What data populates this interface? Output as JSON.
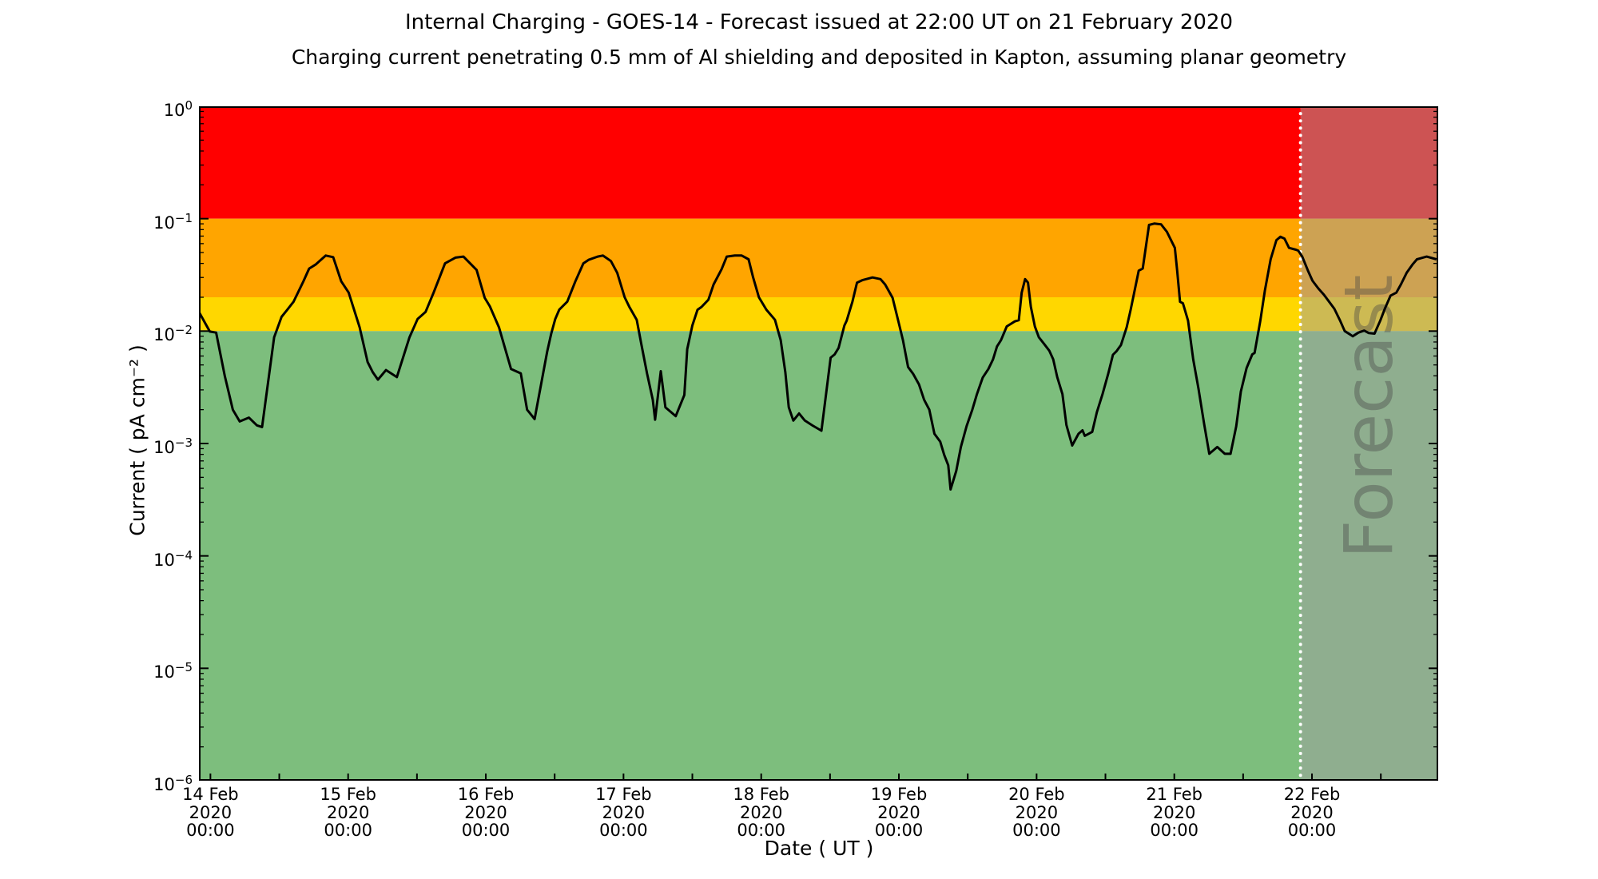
{
  "chart_data": {
    "type": "line",
    "title": "Internal Charging - GOES-14 - Forecast issued at 22:00 UT on 21 February 2020",
    "subtitle": "Charging current penetrating 0.5 mm of Al shielding and deposited in Kapton, assuming planar geometry",
    "xlabel": "Date ( UT )",
    "ylabel": "Current ( pA cm⁻² )",
    "grid": false,
    "legend": "none",
    "x_axis": {
      "range_hours": [
        0,
        216
      ],
      "tick_interval_hours": 12,
      "tick_labels": [
        {
          "hour": 2,
          "lines": [
            "14 Feb",
            "2020",
            "00:00"
          ]
        },
        {
          "hour": 26,
          "lines": [
            "15 Feb",
            "2020",
            "00:00"
          ]
        },
        {
          "hour": 50,
          "lines": [
            "16 Feb",
            "2020",
            "00:00"
          ]
        },
        {
          "hour": 74,
          "lines": [
            "17 Feb",
            "2020",
            "00:00"
          ]
        },
        {
          "hour": 98,
          "lines": [
            "18 Feb",
            "2020",
            "00:00"
          ]
        },
        {
          "hour": 122,
          "lines": [
            "19 Feb",
            "2020",
            "00:00"
          ]
        },
        {
          "hour": 146,
          "lines": [
            "20 Feb",
            "2020",
            "00:00"
          ]
        },
        {
          "hour": 170,
          "lines": [
            "21 Feb",
            "2020",
            "00:00"
          ]
        },
        {
          "hour": 194,
          "lines": [
            "22 Feb",
            "2020",
            "00:00"
          ]
        }
      ]
    },
    "y_axis": {
      "scale": "log",
      "range": [
        1e-06,
        1
      ],
      "tick_labels": [
        "10^0",
        "10^−1",
        "10^−2",
        "10^−3",
        "10^−4",
        "10^−5",
        "10^−6"
      ]
    },
    "alert_bands": [
      {
        "name": "red",
        "min": 0.1,
        "max": 1.0,
        "color": "#ff0000"
      },
      {
        "name": "orange",
        "min": 0.02,
        "max": 0.1,
        "color": "#ffa500"
      },
      {
        "name": "yellow",
        "min": 0.01,
        "max": 0.02,
        "color": "#ffd700"
      },
      {
        "name": "green",
        "min": 1e-06,
        "max": 0.01,
        "color": "#7dbe7d"
      }
    ],
    "forecast": {
      "start_hour": 192,
      "watermark": "Forecast",
      "overlay_color": "rgba(160,160,160,0.52)",
      "divider_color": "#ffffff",
      "watermark_color": "rgba(70,70,70,0.40)"
    },
    "series": [
      {
        "name": "charging-current",
        "color": "#000000",
        "points": [
          [
            0.1,
            0.0145
          ],
          [
            1.9,
            0.0099
          ],
          [
            3.0,
            0.0097
          ],
          [
            4.5,
            0.004
          ],
          [
            5.9,
            0.002
          ],
          [
            7.1,
            0.00157
          ],
          [
            8.7,
            0.0017
          ],
          [
            10.1,
            0.00145
          ],
          [
            11.0,
            0.0014
          ],
          [
            13.1,
            0.0088
          ],
          [
            14.4,
            0.0134
          ],
          [
            15.4,
            0.0155
          ],
          [
            16.5,
            0.0183
          ],
          [
            18.2,
            0.0277
          ],
          [
            19.2,
            0.036
          ],
          [
            20.3,
            0.039
          ],
          [
            22.1,
            0.047
          ],
          [
            23.4,
            0.0455
          ],
          [
            24.8,
            0.0277
          ],
          [
            26.1,
            0.022
          ],
          [
            28.0,
            0.0108
          ],
          [
            29.4,
            0.0053
          ],
          [
            30.3,
            0.0043
          ],
          [
            31.2,
            0.0037
          ],
          [
            32.6,
            0.0045
          ],
          [
            34.5,
            0.0039
          ],
          [
            36.7,
            0.0088
          ],
          [
            38.1,
            0.0128
          ],
          [
            39.5,
            0.0148
          ],
          [
            40.9,
            0.022
          ],
          [
            42.9,
            0.04
          ],
          [
            44.7,
            0.045
          ],
          [
            46.1,
            0.046
          ],
          [
            48.4,
            0.035
          ],
          [
            49.8,
            0.0198
          ],
          [
            50.7,
            0.0166
          ],
          [
            52.3,
            0.0108
          ],
          [
            54.4,
            0.0046
          ],
          [
            56.1,
            0.0042
          ],
          [
            57.2,
            0.002
          ],
          [
            58.5,
            0.00165
          ],
          [
            60.7,
            0.0066
          ],
          [
            61.4,
            0.0095
          ],
          [
            62.1,
            0.0128
          ],
          [
            62.8,
            0.0155
          ],
          [
            64.2,
            0.0183
          ],
          [
            65.6,
            0.0276
          ],
          [
            67.0,
            0.04
          ],
          [
            67.9,
            0.043
          ],
          [
            69.5,
            0.046
          ],
          [
            70.4,
            0.047
          ],
          [
            71.8,
            0.042
          ],
          [
            72.9,
            0.033
          ],
          [
            74.2,
            0.02
          ],
          [
            75.0,
            0.0165
          ],
          [
            76.3,
            0.0126
          ],
          [
            77.1,
            0.0077
          ],
          [
            78.1,
            0.0042
          ],
          [
            79.1,
            0.00245
          ],
          [
            79.5,
            0.00163
          ],
          [
            80.5,
            0.0044
          ],
          [
            81.3,
            0.0021
          ],
          [
            83.1,
            0.00175
          ],
          [
            84.6,
            0.0027
          ],
          [
            85.1,
            0.0069
          ],
          [
            86.0,
            0.0112
          ],
          [
            86.9,
            0.0155
          ],
          [
            87.6,
            0.0164
          ],
          [
            88.8,
            0.019
          ],
          [
            89.7,
            0.026
          ],
          [
            91.1,
            0.0355
          ],
          [
            92.0,
            0.046
          ],
          [
            93.4,
            0.047
          ],
          [
            94.6,
            0.047
          ],
          [
            95.8,
            0.0435
          ],
          [
            96.6,
            0.03
          ],
          [
            97.6,
            0.02
          ],
          [
            98.9,
            0.0155
          ],
          [
            100.4,
            0.0126
          ],
          [
            101.4,
            0.0083
          ],
          [
            102.2,
            0.0043
          ],
          [
            102.8,
            0.0021
          ],
          [
            103.6,
            0.0016
          ],
          [
            104.6,
            0.00185
          ],
          [
            105.6,
            0.0016
          ],
          [
            106.9,
            0.00145
          ],
          [
            108.5,
            0.0013
          ],
          [
            110.1,
            0.0058
          ],
          [
            110.8,
            0.0062
          ],
          [
            111.5,
            0.0071
          ],
          [
            112.5,
            0.0112
          ],
          [
            112.9,
            0.0124
          ],
          [
            113.9,
            0.0183
          ],
          [
            114.7,
            0.027
          ],
          [
            115.7,
            0.0285
          ],
          [
            117.4,
            0.03
          ],
          [
            118.8,
            0.029
          ],
          [
            119.6,
            0.026
          ],
          [
            120.9,
            0.0198
          ],
          [
            122.0,
            0.0117
          ],
          [
            122.7,
            0.0083
          ],
          [
            123.6,
            0.0048
          ],
          [
            124.5,
            0.00415
          ],
          [
            125.5,
            0.00335
          ],
          [
            126.4,
            0.00245
          ],
          [
            127.3,
            0.002
          ],
          [
            128.2,
            0.00122
          ],
          [
            129.2,
            0.00104
          ],
          [
            129.9,
            0.00079
          ],
          [
            130.6,
            0.00064
          ],
          [
            131.0,
            0.00039
          ],
          [
            132.0,
            0.00057
          ],
          [
            132.8,
            0.00093
          ],
          [
            133.8,
            0.00143
          ],
          [
            134.8,
            0.002
          ],
          [
            135.6,
            0.00275
          ],
          [
            136.6,
            0.00385
          ],
          [
            137.6,
            0.0046
          ],
          [
            138.4,
            0.0056
          ],
          [
            139.1,
            0.0073
          ],
          [
            139.8,
            0.0083
          ],
          [
            140.8,
            0.011
          ],
          [
            142.2,
            0.0122
          ],
          [
            142.9,
            0.0125
          ],
          [
            143.4,
            0.022
          ],
          [
            144.0,
            0.029
          ],
          [
            144.5,
            0.027
          ],
          [
            145.0,
            0.0164
          ],
          [
            145.7,
            0.011
          ],
          [
            146.4,
            0.0088
          ],
          [
            147.3,
            0.0077
          ],
          [
            148.2,
            0.0067
          ],
          [
            148.9,
            0.0056
          ],
          [
            149.6,
            0.0039
          ],
          [
            150.5,
            0.00275
          ],
          [
            151.2,
            0.00146
          ],
          [
            152.2,
            0.00096
          ],
          [
            153.3,
            0.00122
          ],
          [
            154.0,
            0.00131
          ],
          [
            154.4,
            0.00117
          ],
          [
            155.7,
            0.00127
          ],
          [
            156.5,
            0.0019
          ],
          [
            157.5,
            0.00275
          ],
          [
            158.5,
            0.0042
          ],
          [
            159.3,
            0.00615
          ],
          [
            159.9,
            0.0066
          ],
          [
            160.7,
            0.0075
          ],
          [
            161.7,
            0.0108
          ],
          [
            162.4,
            0.0155
          ],
          [
            163.8,
            0.0345
          ],
          [
            164.5,
            0.036
          ],
          [
            165.6,
            0.088
          ],
          [
            166.5,
            0.0905
          ],
          [
            167.7,
            0.089
          ],
          [
            168.7,
            0.0765
          ],
          [
            169.6,
            0.062
          ],
          [
            170.1,
            0.055
          ],
          [
            170.5,
            0.0345
          ],
          [
            171.0,
            0.0182
          ],
          [
            171.5,
            0.0177
          ],
          [
            172.4,
            0.0124
          ],
          [
            173.3,
            0.0056
          ],
          [
            174.2,
            0.0031
          ],
          [
            175.2,
            0.0015
          ],
          [
            176.1,
            0.00081
          ],
          [
            177.5,
            0.00093
          ],
          [
            178.8,
            0.00081
          ],
          [
            179.8,
            0.00081
          ],
          [
            180.8,
            0.00142
          ],
          [
            181.6,
            0.0029
          ],
          [
            182.6,
            0.0047
          ],
          [
            183.6,
            0.0062
          ],
          [
            184.0,
            0.0064
          ],
          [
            185.0,
            0.0124
          ],
          [
            185.8,
            0.023
          ],
          [
            186.8,
            0.0435
          ],
          [
            187.8,
            0.0645
          ],
          [
            188.5,
            0.069
          ],
          [
            189.2,
            0.0665
          ],
          [
            190.0,
            0.055
          ],
          [
            191.2,
            0.053
          ],
          [
            191.6,
            0.052
          ],
          [
            192.3,
            0.046
          ],
          [
            193.3,
            0.0345
          ],
          [
            194.1,
            0.028
          ],
          [
            195.1,
            0.024
          ],
          [
            196.1,
            0.021
          ],
          [
            196.9,
            0.0185
          ],
          [
            197.9,
            0.0158
          ],
          [
            198.9,
            0.0124
          ],
          [
            199.7,
            0.01
          ],
          [
            200.7,
            0.0093
          ],
          [
            201.1,
            0.009
          ],
          [
            202.1,
            0.0097
          ],
          [
            203.1,
            0.0101
          ],
          [
            203.9,
            0.0096
          ],
          [
            204.9,
            0.0095
          ],
          [
            205.9,
            0.0124
          ],
          [
            206.7,
            0.0158
          ],
          [
            207.7,
            0.0207
          ],
          [
            208.7,
            0.022
          ],
          [
            209.5,
            0.026
          ],
          [
            210.5,
            0.033
          ],
          [
            211.5,
            0.039
          ],
          [
            212.3,
            0.0435
          ],
          [
            214.0,
            0.046
          ],
          [
            215.7,
            0.0435
          ]
        ]
      }
    ]
  }
}
